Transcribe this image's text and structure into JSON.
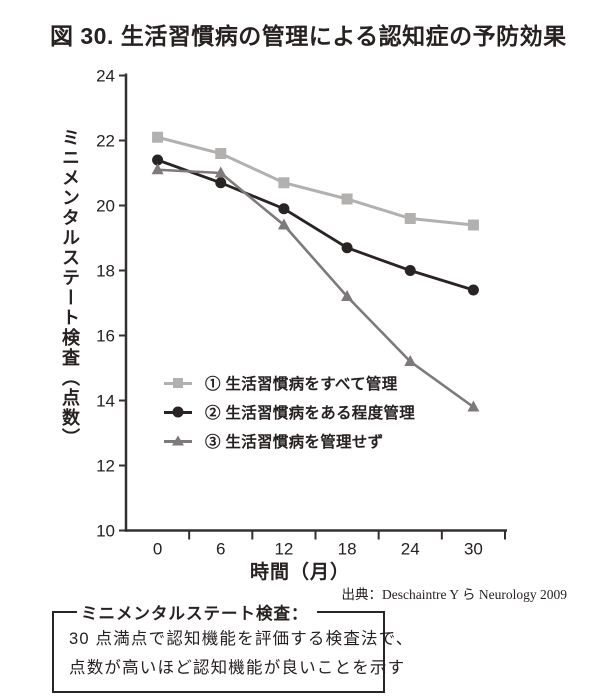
{
  "figure": {
    "title": "図 30. 生活習慣病の管理による認知症の予防効果",
    "source": "出典：Deschaintre Y ら Neurology 2009"
  },
  "chart_data": {
    "type": "line",
    "x": [
      0,
      6,
      12,
      18,
      24,
      30
    ],
    "x_tick_labels": [
      "0",
      "6",
      "12",
      "18",
      "24",
      "30"
    ],
    "xlabel": "時間（月）",
    "ylabel": "ミニメンタルステート検査（点数）",
    "ylim": [
      10,
      24
    ],
    "y_ticks": [
      24,
      22,
      20,
      18,
      16,
      14,
      12,
      10
    ],
    "grid": false,
    "legend_position": "inside-left-middle",
    "series": [
      {
        "name": "① 生活習慣病をすべて管理",
        "marker": "square",
        "color": "#b3b0b0",
        "line_width": 3,
        "values": [
          22.1,
          21.6,
          20.7,
          20.2,
          19.6,
          19.4
        ]
      },
      {
        "name": "② 生活習慣病をある程度管理",
        "marker": "circle",
        "color": "#292323",
        "line_width": 2.8,
        "values": [
          21.4,
          20.7,
          19.9,
          18.7,
          18.0,
          17.4
        ]
      },
      {
        "name": "③ 生活習慣病を管理せず",
        "marker": "triangle",
        "color": "#7e7a7a",
        "line_width": 2.6,
        "values": [
          21.1,
          21.0,
          19.4,
          17.2,
          15.2,
          13.8
        ]
      }
    ]
  },
  "note_box": {
    "title": "ミニメンタルステート検査：",
    "line1": "30 点満点で認知機能を評価する検査法で、",
    "line2": "点数が高いほど認知機能が良いことを示す"
  },
  "colors": {
    "text": "#272121",
    "axis": "#343030"
  }
}
